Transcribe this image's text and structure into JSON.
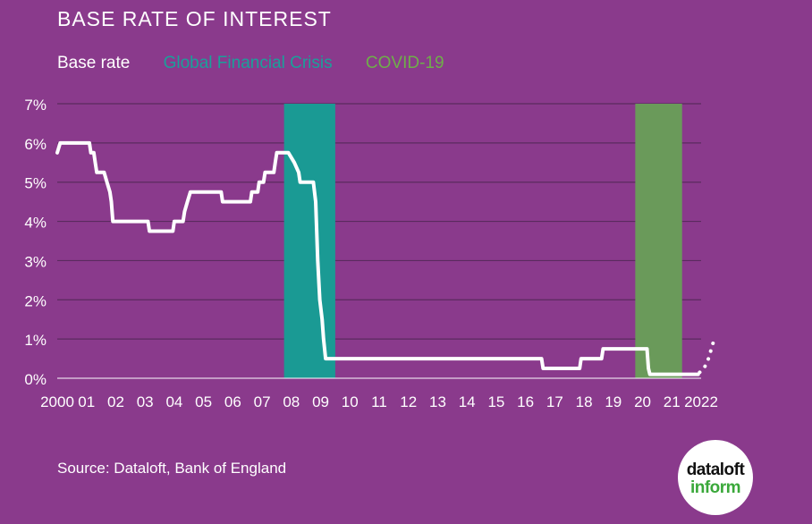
{
  "title": "BASE RATE OF INTEREST",
  "legend": {
    "base": "Base rate",
    "gfc": "Global Financial Crisis",
    "covid": "COVID-19"
  },
  "source": "Source: Dataloft, Bank of England",
  "logo": {
    "line1": "dataloft",
    "line2": "inform"
  },
  "colors": {
    "background": "#8a3a8c",
    "line": "#ffffff",
    "gfc": "#1a9a94",
    "covid": "#6a9a5a",
    "grid": "#5a2a5e"
  },
  "chart_data": {
    "type": "line",
    "title": "BASE RATE OF INTEREST",
    "xlabel": "",
    "ylabel": "",
    "xlim": [
      2000,
      2022
    ],
    "ylim": [
      0,
      7
    ],
    "y_ticks": [
      0,
      1,
      2,
      3,
      4,
      5,
      6,
      7
    ],
    "y_tick_labels": [
      "0%",
      "1%",
      "2%",
      "3%",
      "4%",
      "5%",
      "6%",
      "7%"
    ],
    "x_ticks": [
      2000,
      2001,
      2002,
      2003,
      2004,
      2005,
      2006,
      2007,
      2008,
      2009,
      2010,
      2011,
      2012,
      2013,
      2014,
      2015,
      2016,
      2017,
      2018,
      2019,
      2020,
      2021,
      2022
    ],
    "x_tick_labels": [
      "2000",
      "01",
      "02",
      "03",
      "04",
      "05",
      "06",
      "07",
      "08",
      "09",
      "10",
      "11",
      "12",
      "13",
      "14",
      "15",
      "16",
      "17",
      "18",
      "19",
      "20",
      "21",
      "2022"
    ],
    "grid": "horizontal",
    "shaded_regions": [
      {
        "label": "Global Financial Crisis",
        "start": 2007.75,
        "end": 2009.5
      },
      {
        "label": "COVID-19",
        "start": 2019.75,
        "end": 2021.35
      }
    ],
    "series": [
      {
        "name": "Base rate",
        "style": "solid",
        "points": [
          [
            2000.0,
            5.75
          ],
          [
            2000.1,
            6.0
          ],
          [
            2001.1,
            6.0
          ],
          [
            2001.15,
            5.75
          ],
          [
            2001.25,
            5.75
          ],
          [
            2001.3,
            5.5
          ],
          [
            2001.35,
            5.25
          ],
          [
            2001.6,
            5.25
          ],
          [
            2001.7,
            5.0
          ],
          [
            2001.8,
            4.75
          ],
          [
            2001.85,
            4.5
          ],
          [
            2001.9,
            4.0
          ],
          [
            2003.1,
            4.0
          ],
          [
            2003.15,
            3.75
          ],
          [
            2003.95,
            3.75
          ],
          [
            2004.0,
            4.0
          ],
          [
            2004.3,
            4.0
          ],
          [
            2004.35,
            4.25
          ],
          [
            2004.45,
            4.5
          ],
          [
            2004.55,
            4.75
          ],
          [
            2005.6,
            4.75
          ],
          [
            2005.65,
            4.5
          ],
          [
            2006.6,
            4.5
          ],
          [
            2006.65,
            4.75
          ],
          [
            2006.85,
            4.75
          ],
          [
            2006.9,
            5.0
          ],
          [
            2007.05,
            5.0
          ],
          [
            2007.1,
            5.25
          ],
          [
            2007.4,
            5.25
          ],
          [
            2007.45,
            5.5
          ],
          [
            2007.5,
            5.75
          ],
          [
            2007.9,
            5.75
          ],
          [
            2008.1,
            5.5
          ],
          [
            2008.25,
            5.25
          ],
          [
            2008.3,
            5.0
          ],
          [
            2008.75,
            5.0
          ],
          [
            2008.83,
            4.5
          ],
          [
            2008.9,
            3.0
          ],
          [
            2008.97,
            2.0
          ],
          [
            2009.05,
            1.5
          ],
          [
            2009.1,
            1.0
          ],
          [
            2009.17,
            0.5
          ],
          [
            2016.55,
            0.5
          ],
          [
            2016.6,
            0.25
          ],
          [
            2017.85,
            0.25
          ],
          [
            2017.9,
            0.5
          ],
          [
            2018.6,
            0.5
          ],
          [
            2018.65,
            0.75
          ],
          [
            2020.15,
            0.75
          ],
          [
            2020.2,
            0.25
          ],
          [
            2020.25,
            0.1
          ],
          [
            2021.9,
            0.1
          ]
        ]
      },
      {
        "name": "",
        "style": "dotted",
        "points": [
          [
            2021.95,
            0.15
          ],
          [
            2022.1,
            0.25
          ],
          [
            2022.25,
            0.5
          ],
          [
            2022.45,
            1.0
          ]
        ]
      }
    ]
  }
}
